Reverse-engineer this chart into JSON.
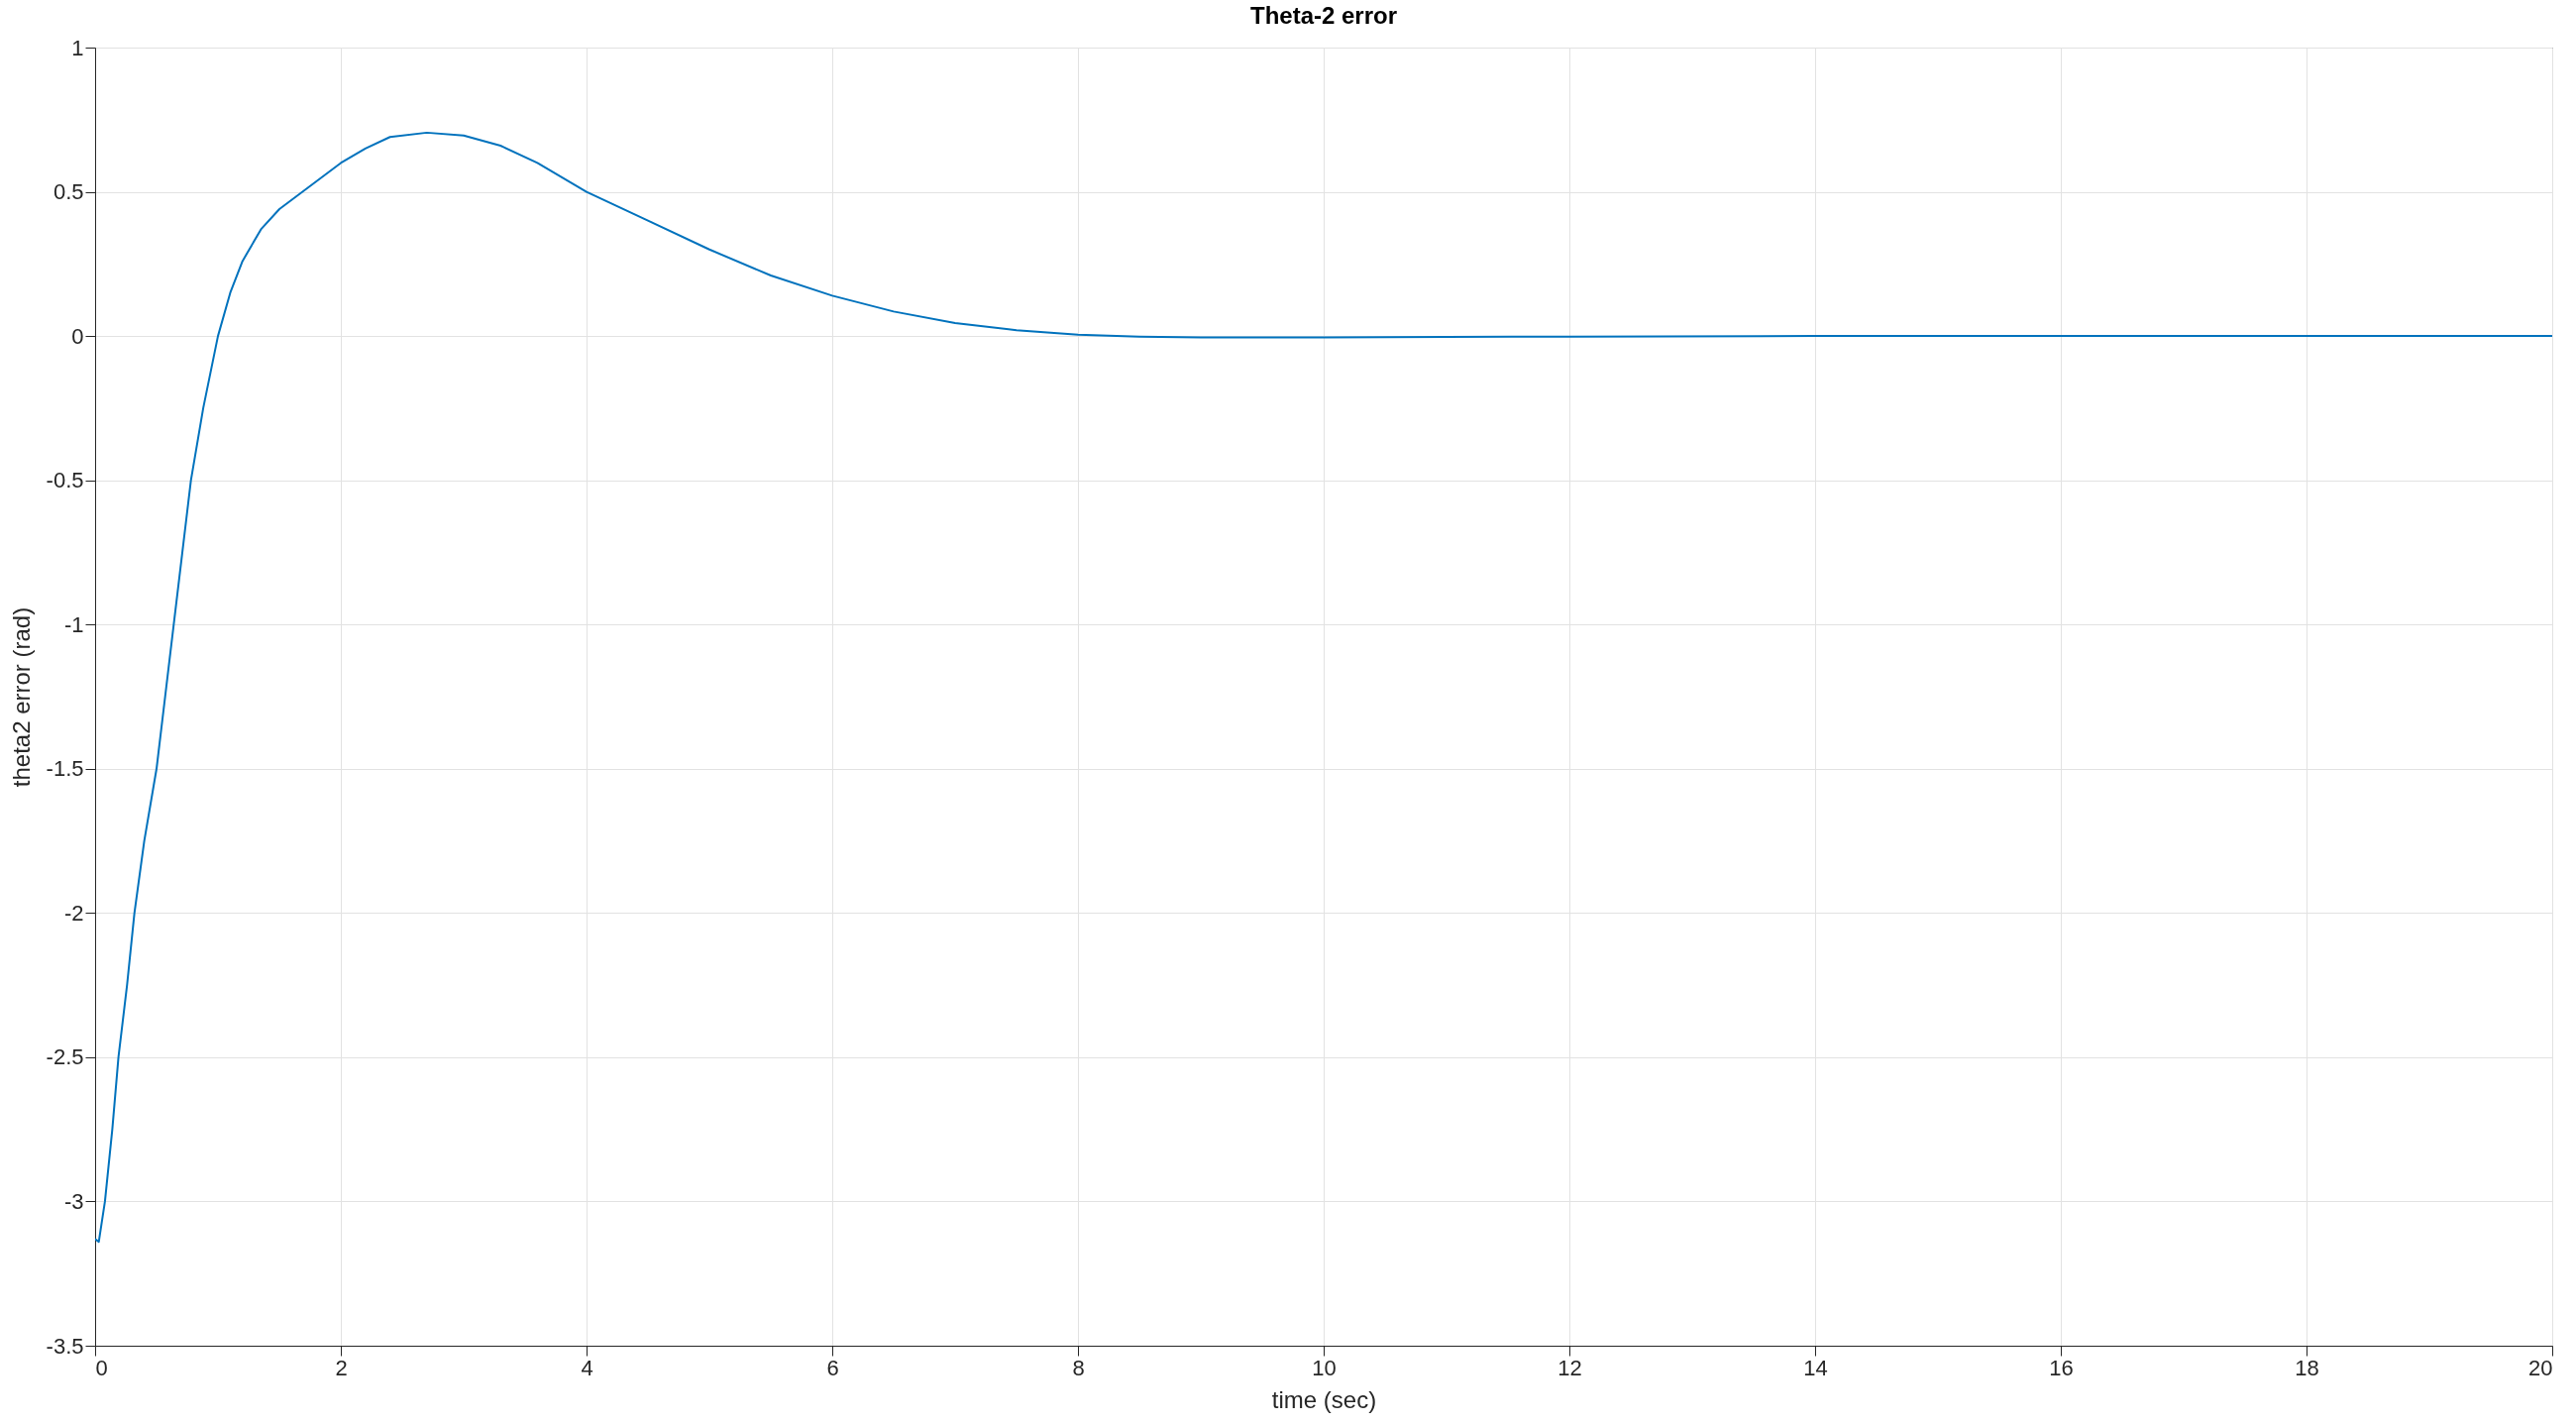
{
  "chart_data": {
    "type": "line",
    "title": "Theta-2 error",
    "xlabel": "time (sec)",
    "ylabel": "theta2 error (rad)",
    "series": [
      {
        "color": "#0072bd",
        "x": [
          0,
          0.03,
          0.08,
          0.14,
          0.19,
          0.26,
          0.32,
          0.4,
          0.5,
          0.57,
          0.64,
          0.71,
          0.78,
          0.88,
          1.0,
          1.1,
          1.2,
          1.35,
          1.5,
          1.75,
          2.0,
          2.2,
          2.4,
          2.7,
          3.0,
          3.3,
          3.6,
          4.0,
          4.5,
          5.0,
          5.5,
          6.0,
          6.5,
          7.0,
          7.5,
          8.0,
          8.5,
          9.0,
          10.0,
          11.0,
          12.0,
          14.0,
          16.0,
          18.0,
          20.0
        ],
        "values": [
          -3.13,
          -3.14,
          -3.0,
          -2.75,
          -2.5,
          -2.25,
          -2.0,
          -1.75,
          -1.5,
          -1.25,
          -1.0,
          -0.75,
          -0.5,
          -0.25,
          0.0,
          0.15,
          0.26,
          0.37,
          0.44,
          0.52,
          0.6,
          0.65,
          0.69,
          0.705,
          0.695,
          0.66,
          0.6,
          0.5,
          0.4,
          0.3,
          0.21,
          0.14,
          0.085,
          0.045,
          0.02,
          0.005,
          -0.002,
          -0.005,
          -0.005,
          -0.003,
          -0.002,
          0,
          0,
          0,
          0
        ]
      }
    ],
    "xlim": [
      0,
      20
    ],
    "xticks": [
      0,
      2,
      4,
      6,
      8,
      10,
      12,
      14,
      16,
      18,
      20
    ],
    "ylim": [
      -3.5,
      1
    ],
    "yticks": [
      -3.5,
      -3,
      -2.5,
      -2,
      -1.5,
      -1,
      -0.5,
      0,
      0.5,
      1
    ],
    "grid": true,
    "line_style": "solid",
    "marker": "none"
  }
}
